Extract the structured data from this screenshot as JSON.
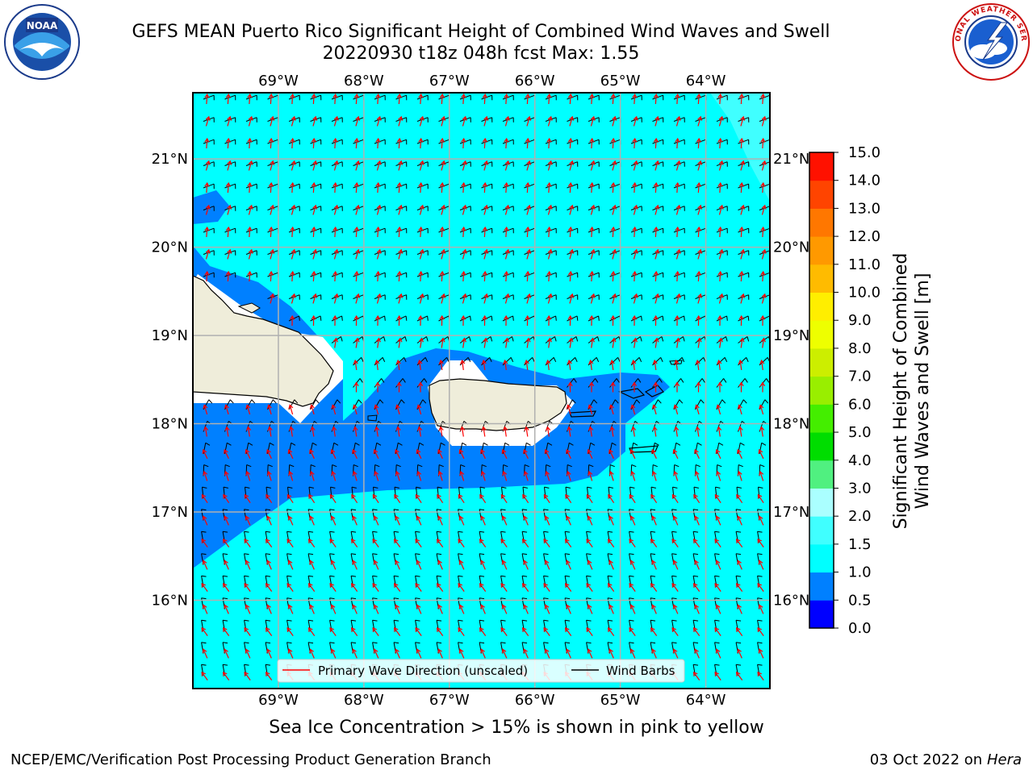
{
  "header": {
    "title_line1": "GEFS MEAN Puerto Rico Significant Height of Combined Wind Waves and Swell",
    "title_line2": "20220930 t18z 048h fcst   Max: 1.55"
  },
  "logos": {
    "left": "noaa-logo",
    "right": "national-weather-service-logo"
  },
  "map": {
    "projection": "cylindrical",
    "lon_range": [
      -70.0,
      -63.25
    ],
    "lat_range": [
      15.0,
      21.75
    ],
    "longitude_ticks": [
      "69°W",
      "68°W",
      "67°W",
      "66°W",
      "65°W",
      "64°W"
    ],
    "longitude_values": [
      -69,
      -68,
      -67,
      -66,
      -65,
      -64
    ],
    "latitude_ticks": [
      "21°N",
      "20°N",
      "19°N",
      "18°N",
      "17°N",
      "16°N"
    ],
    "latitude_values": [
      21,
      20,
      19,
      18,
      17,
      16
    ],
    "grid": true,
    "ocean_color": "#00ffff",
    "land_color": "#efedda",
    "low_wave_color": "#0080ff",
    "legend": {
      "placement": "bottom-center",
      "entries": [
        {
          "label": "Primary Wave Direction (unscaled)",
          "color": "#ff0000"
        },
        {
          "label": "Wind Barbs",
          "color": "#000000"
        }
      ]
    }
  },
  "colorbar": {
    "label_line1": "Significant Height of Combined",
    "label_line2": "Wind Waves and Swell [m]",
    "ticks": [
      "0.0",
      "0.5",
      "1.0",
      "1.5",
      "2.0",
      "3.0",
      "4.0",
      "5.0",
      "6.0",
      "7.0",
      "8.0",
      "9.0",
      "10.0",
      "11.0",
      "12.0",
      "13.0",
      "14.0",
      "15.0"
    ],
    "colors": [
      "#0000ff",
      "#0080ff",
      "#00ffff",
      "#40ffff",
      "#aaffff",
      "#50f080",
      "#00dd00",
      "#44ee00",
      "#99ee00",
      "#ccee00",
      "#eeff00",
      "#ffee00",
      "#ffbb00",
      "#ff9900",
      "#ff7700",
      "#ff4400",
      "#ff1100"
    ]
  },
  "sea_ice_note": "Sea Ice Concentration > 15% is shown in pink to yellow",
  "footer": {
    "left": "NCEP/EMC/Verification Post Processing Product Generation Branch",
    "right_date": "03 Oct 2022 on ",
    "right_host": "Hera"
  }
}
